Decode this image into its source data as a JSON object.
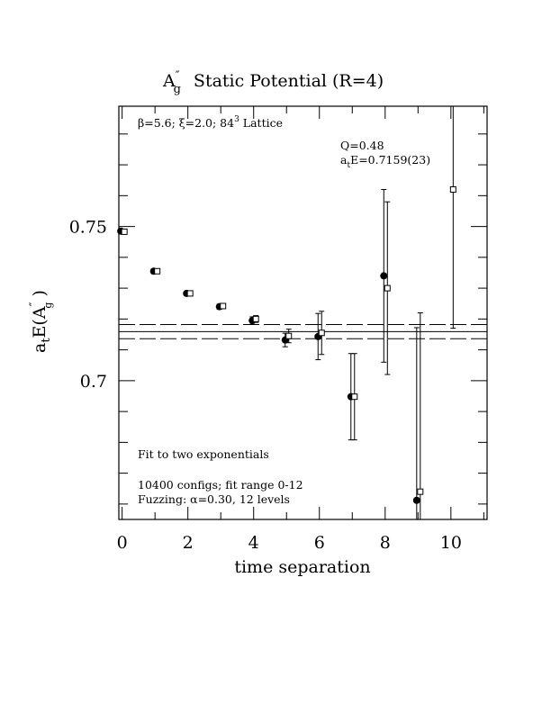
{
  "chart_data": {
    "type": "scatter",
    "title_main": "A",
    "title_sup": "″",
    "title_sub": "g",
    "title_rest": "Static Potential (R=4)",
    "ylabel_prefix": "a",
    "ylabel_prefix_sub": "t",
    "ylabel_mid": "E(A",
    "ylabel_sup": "″",
    "ylabel_sub": "g",
    "ylabel_close": " )",
    "xlabel": "time separation",
    "xlim": [
      -0.1,
      11.1
    ],
    "ylim": [
      0.655,
      0.789
    ],
    "xticks": [
      0,
      2,
      4,
      6,
      8,
      10
    ],
    "xtick_labels": [
      "0",
      "2",
      "4",
      "6",
      "8",
      "10"
    ],
    "yticks": [
      0.7,
      0.75
    ],
    "ytick_labels": [
      "0.7",
      "0.75"
    ],
    "annotations": {
      "params_beta": "β=5.6; ξ=2.0; 8",
      "params_sup": "4",
      "params_rest": "3",
      "params_tail": " Lattice",
      "q_value": "Q=0.48",
      "energy_prefix": "a",
      "energy_sub": "t",
      "energy_rest": "E=0.7159(23)",
      "fit_desc": "Fit to two exponentials",
      "configs": "10400 configs; fit range 0-12",
      "fuzzing": "Fuzzing: α=0.30, 12 levels"
    },
    "fit_band": {
      "center": 0.7159,
      "lower": 0.7136,
      "upper": 0.7182
    },
    "series": [
      {
        "marker": "filled-circle",
        "points": [
          {
            "x": 0,
            "y": 0.7485,
            "err": 0.0006
          },
          {
            "x": 1,
            "y": 0.7355,
            "err": 0.0006
          },
          {
            "x": 2,
            "y": 0.7283,
            "err": 0.0007
          },
          {
            "x": 3,
            "y": 0.724,
            "err": 0.0008
          },
          {
            "x": 4,
            "y": 0.7195,
            "err": 0.0012
          },
          {
            "x": 5,
            "y": 0.7132,
            "err": 0.0022
          },
          {
            "x": 6,
            "y": 0.7143,
            "err": 0.0075
          },
          {
            "x": 7,
            "y": 0.6948,
            "err": 0.014
          },
          {
            "x": 8,
            "y": 0.734,
            "err": 0.028
          },
          {
            "x": 9,
            "y": 0.6612,
            "err": 0.056
          }
        ]
      },
      {
        "marker": "open-square",
        "points": [
          {
            "x": 0,
            "y": 0.7483,
            "err": 0.0004
          },
          {
            "x": 1,
            "y": 0.7355,
            "err": 0.0005
          },
          {
            "x": 2,
            "y": 0.7283,
            "err": 0.0006
          },
          {
            "x": 3,
            "y": 0.7242,
            "err": 0.0007
          },
          {
            "x": 4,
            "y": 0.72,
            "err": 0.0011
          },
          {
            "x": 5,
            "y": 0.7145,
            "err": 0.0022
          },
          {
            "x": 6,
            "y": 0.7155,
            "err": 0.007
          },
          {
            "x": 7,
            "y": 0.6948,
            "err": 0.014
          },
          {
            "x": 8,
            "y": 0.73,
            "err": 0.028
          },
          {
            "x": 9,
            "y": 0.664,
            "err": 0.058
          },
          {
            "x": 10,
            "y": 0.762,
            "err": 0.045
          }
        ]
      }
    ],
    "grid": false,
    "legend": "none"
  }
}
